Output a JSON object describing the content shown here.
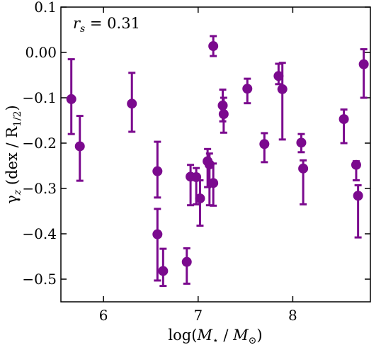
{
  "chart_data": {
    "type": "scatter",
    "xlabel": "log(M⋆ / M⊙)",
    "ylabel": "γz (dex / R1/2)",
    "xlim": [
      5.55,
      8.82
    ],
    "ylim": [
      -0.55,
      0.1
    ],
    "x_ticks": [
      6,
      7,
      8
    ],
    "y_ticks": [
      0.1,
      0.0,
      -0.1,
      -0.2,
      -0.3,
      -0.4,
      -0.5
    ],
    "x_tick_labels": [
      "6",
      "7",
      "8"
    ],
    "y_tick_labels": [
      "0.1",
      "0.00",
      "−0.1",
      "−0.2",
      "−0.3",
      "−0.4",
      "−0.5"
    ],
    "annotation": "rs = 0.31",
    "color": "#7b0a8e",
    "points": [
      {
        "x": 5.66,
        "y": -0.103,
        "ylo": -0.18,
        "yhi": -0.015
      },
      {
        "x": 5.75,
        "y": -0.207,
        "ylo": -0.283,
        "yhi": -0.14
      },
      {
        "x": 6.3,
        "y": -0.113,
        "ylo": -0.175,
        "yhi": -0.045
      },
      {
        "x": 6.57,
        "y": -0.262,
        "ylo": -0.32,
        "yhi": -0.197
      },
      {
        "x": 6.57,
        "y": -0.401,
        "ylo": -0.503,
        "yhi": -0.345
      },
      {
        "x": 6.63,
        "y": -0.482,
        "ylo": -0.515,
        "yhi": -0.433
      },
      {
        "x": 6.88,
        "y": -0.462,
        "ylo": -0.51,
        "yhi": -0.432
      },
      {
        "x": 6.92,
        "y": -0.274,
        "ylo": -0.337,
        "yhi": -0.248
      },
      {
        "x": 6.98,
        "y": -0.275,
        "ylo": -0.335,
        "yhi": -0.255
      },
      {
        "x": 7.02,
        "y": -0.322,
        "ylo": -0.382,
        "yhi": -0.282
      },
      {
        "x": 7.1,
        "y": -0.24,
        "ylo": -0.297,
        "yhi": -0.213
      },
      {
        "x": 7.12,
        "y": -0.247,
        "ylo": -0.337,
        "yhi": -0.223
      },
      {
        "x": 7.16,
        "y": -0.288,
        "ylo": -0.338,
        "yhi": -0.245
      },
      {
        "x": 7.16,
        "y": 0.014,
        "ylo": -0.008,
        "yhi": 0.036
      },
      {
        "x": 7.26,
        "y": -0.117,
        "ylo": -0.152,
        "yhi": -0.082
      },
      {
        "x": 7.27,
        "y": -0.136,
        "ylo": -0.177,
        "yhi": -0.1
      },
      {
        "x": 7.52,
        "y": -0.08,
        "ylo": -0.112,
        "yhi": -0.058
      },
      {
        "x": 7.7,
        "y": -0.202,
        "ylo": -0.242,
        "yhi": -0.178
      },
      {
        "x": 7.85,
        "y": -0.052,
        "ylo": -0.07,
        "yhi": -0.025
      },
      {
        "x": 7.89,
        "y": -0.081,
        "ylo": -0.192,
        "yhi": -0.023
      },
      {
        "x": 8.09,
        "y": -0.199,
        "ylo": -0.22,
        "yhi": -0.18
      },
      {
        "x": 8.11,
        "y": -0.256,
        "ylo": -0.335,
        "yhi": -0.238
      },
      {
        "x": 8.54,
        "y": -0.147,
        "ylo": -0.2,
        "yhi": -0.126
      },
      {
        "x": 8.67,
        "y": -0.248,
        "ylo": -0.282,
        "yhi": -0.24
      },
      {
        "x": 8.69,
        "y": -0.316,
        "ylo": -0.408,
        "yhi": -0.293
      },
      {
        "x": 8.75,
        "y": -0.026,
        "ylo": -0.1,
        "yhi": 0.007
      }
    ]
  }
}
